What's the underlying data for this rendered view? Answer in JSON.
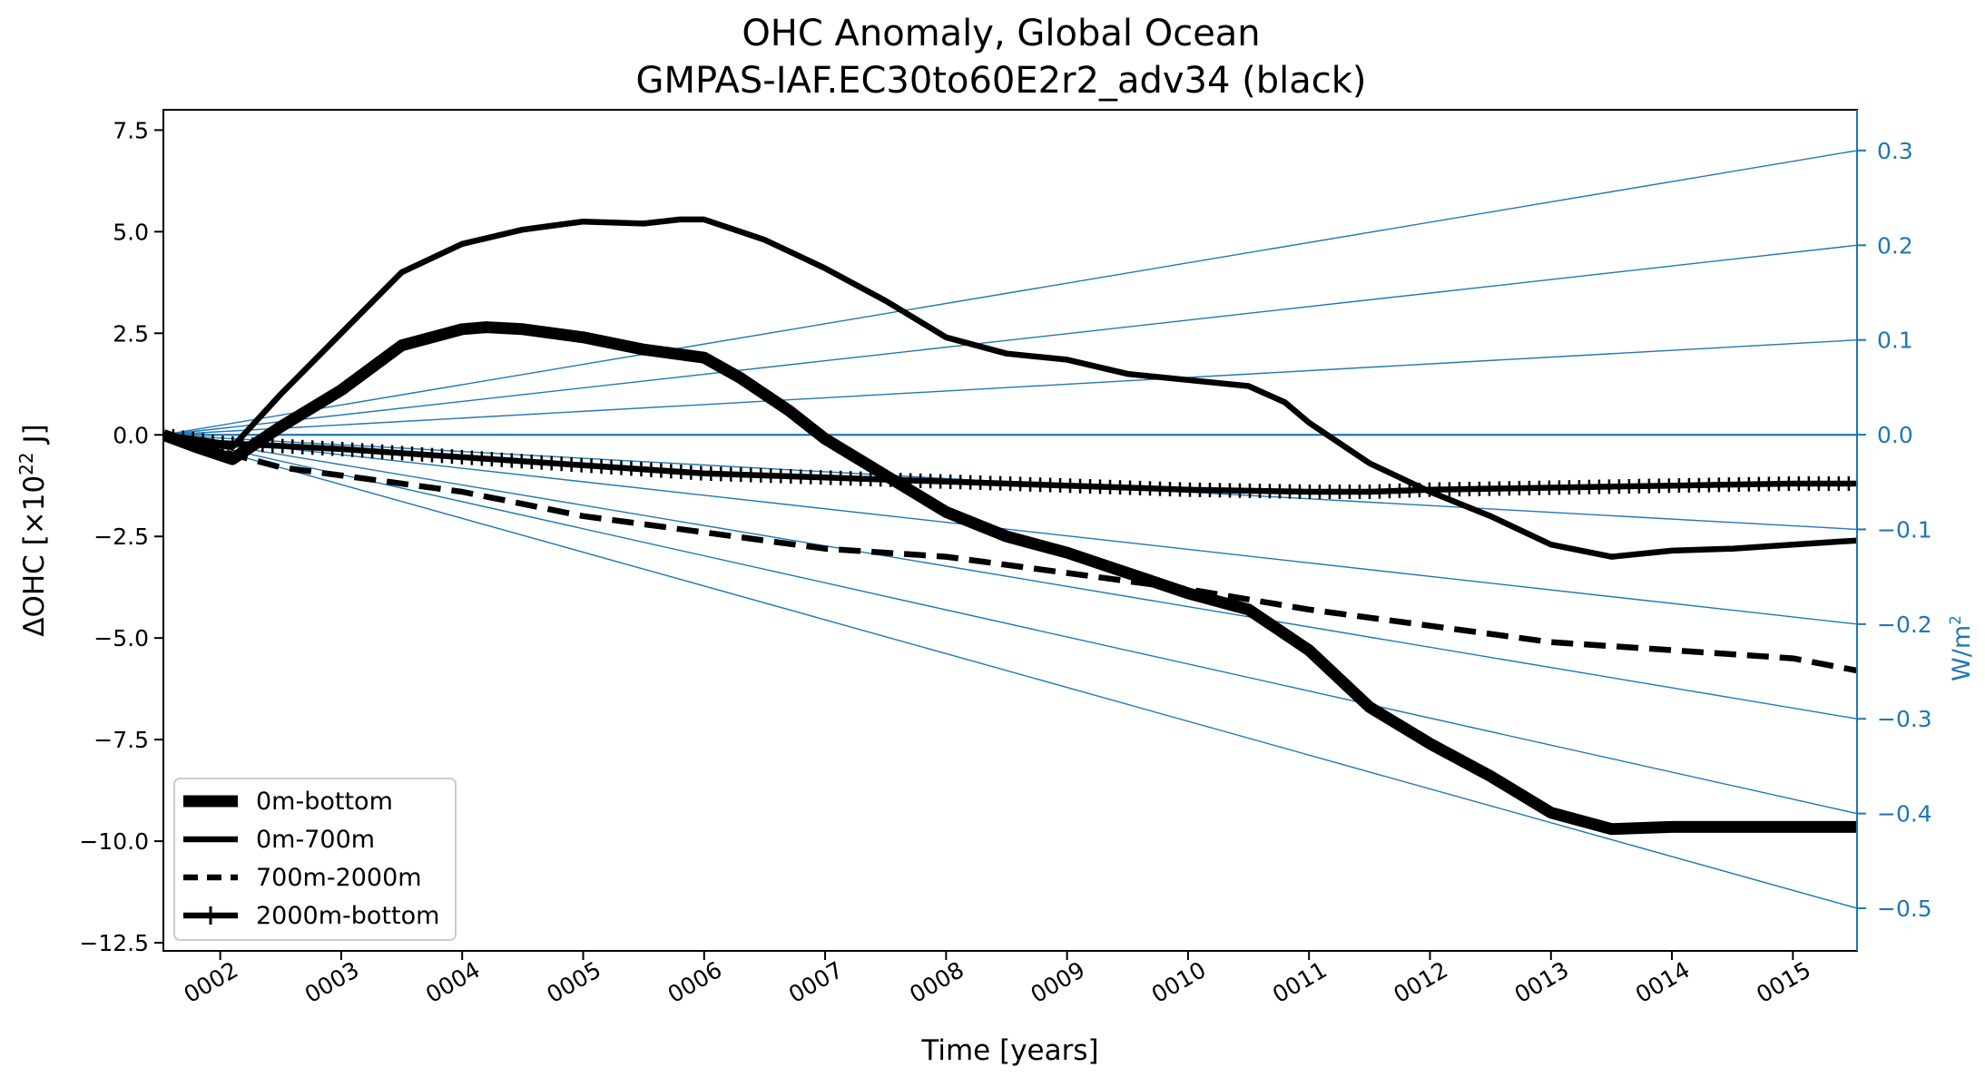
{
  "chart_data": {
    "type": "line",
    "title": "OHC Anomaly, Global Ocean",
    "subtitle": "GMPAS-IAF.EC30to60E2r2_adv34 (black)",
    "xlabel": "Time [years]",
    "ylabel_main": "ΔOHC [×10",
    "ylabel_sup": "22",
    "ylabel_tail": " J]",
    "ylabel_right_main": "W/m",
    "ylabel_right_sup": "2",
    "xlim": [
      1.53,
      15.53
    ],
    "ylim": [
      -12.7,
      8.0
    ],
    "ylim_right": [
      -0.545,
      0.343
    ],
    "x_ticks": [
      2,
      3,
      4,
      5,
      6,
      7,
      8,
      9,
      10,
      11,
      12,
      13,
      14,
      15
    ],
    "x_tick_labels": [
      "0002",
      "0003",
      "0004",
      "0005",
      "0006",
      "0007",
      "0008",
      "0009",
      "0010",
      "0011",
      "0012",
      "0013",
      "0014",
      "0015"
    ],
    "y_ticks": [
      7.5,
      5.0,
      2.5,
      0.0,
      -2.5,
      -5.0,
      -7.5,
      -10.0,
      -12.5
    ],
    "y_tick_labels": [
      "7.5",
      "5.0",
      "2.5",
      "0.0",
      "−2.5",
      "−5.0",
      "−7.5",
      "−10.0",
      "−12.5"
    ],
    "y2_ticks": [
      0.3,
      0.2,
      0.1,
      0.0,
      -0.1,
      -0.2,
      -0.3,
      -0.4,
      -0.5
    ],
    "y2_tick_labels": [
      "0.3",
      "0.2",
      "0.1",
      "0.0",
      "−0.1",
      "−0.2",
      "−0.3",
      "−0.4",
      "−0.5"
    ],
    "reference_color": "#1f77b4",
    "reference_lines_wm2": [
      0.3,
      0.2,
      0.1,
      0.0,
      -0.1,
      -0.2,
      -0.3,
      -0.4,
      -0.5
    ],
    "legend_position": "lower left",
    "series": [
      {
        "name": "0m-bottom",
        "style": "solid-thick",
        "color": "#000000",
        "points": [
          [
            1.53,
            0.0
          ],
          [
            1.8,
            -0.3
          ],
          [
            2.1,
            -0.6
          ],
          [
            2.5,
            0.2
          ],
          [
            3.0,
            1.1
          ],
          [
            3.5,
            2.2
          ],
          [
            4.0,
            2.6
          ],
          [
            4.2,
            2.65
          ],
          [
            4.5,
            2.6
          ],
          [
            5.0,
            2.4
          ],
          [
            5.5,
            2.1
          ],
          [
            6.0,
            1.9
          ],
          [
            6.3,
            1.4
          ],
          [
            6.7,
            0.6
          ],
          [
            7.0,
            -0.1
          ],
          [
            7.5,
            -1.0
          ],
          [
            8.0,
            -1.9
          ],
          [
            8.5,
            -2.5
          ],
          [
            9.0,
            -2.9
          ],
          [
            9.5,
            -3.4
          ],
          [
            10.0,
            -3.9
          ],
          [
            10.5,
            -4.3
          ],
          [
            11.0,
            -5.3
          ],
          [
            11.5,
            -6.7
          ],
          [
            12.0,
            -7.6
          ],
          [
            12.5,
            -8.4
          ],
          [
            13.0,
            -9.3
          ],
          [
            13.5,
            -9.7
          ],
          [
            14.0,
            -9.65
          ],
          [
            14.5,
            -9.65
          ],
          [
            15.0,
            -9.65
          ],
          [
            15.53,
            -9.65
          ]
        ]
      },
      {
        "name": "0m-700m",
        "style": "solid",
        "color": "#000000",
        "points": [
          [
            1.53,
            0.0
          ],
          [
            1.8,
            -0.2
          ],
          [
            2.1,
            -0.3
          ],
          [
            2.5,
            1.0
          ],
          [
            3.0,
            2.5
          ],
          [
            3.5,
            4.0
          ],
          [
            4.0,
            4.7
          ],
          [
            4.5,
            5.05
          ],
          [
            5.0,
            5.25
          ],
          [
            5.5,
            5.2
          ],
          [
            5.8,
            5.3
          ],
          [
            6.0,
            5.3
          ],
          [
            6.5,
            4.8
          ],
          [
            7.0,
            4.1
          ],
          [
            7.5,
            3.3
          ],
          [
            8.0,
            2.4
          ],
          [
            8.5,
            2.0
          ],
          [
            9.0,
            1.85
          ],
          [
            9.5,
            1.5
          ],
          [
            10.0,
            1.35
          ],
          [
            10.5,
            1.2
          ],
          [
            10.8,
            0.8
          ],
          [
            11.0,
            0.3
          ],
          [
            11.5,
            -0.7
          ],
          [
            12.0,
            -1.4
          ],
          [
            12.5,
            -2.0
          ],
          [
            13.0,
            -2.7
          ],
          [
            13.5,
            -3.0
          ],
          [
            14.0,
            -2.85
          ],
          [
            14.5,
            -2.8
          ],
          [
            15.0,
            -2.7
          ],
          [
            15.53,
            -2.6
          ]
        ]
      },
      {
        "name": "700m-2000m",
        "style": "dashed",
        "color": "#000000",
        "points": [
          [
            1.53,
            0.0
          ],
          [
            2.0,
            -0.4
          ],
          [
            2.5,
            -0.8
          ],
          [
            3.0,
            -1.0
          ],
          [
            4.0,
            -1.4
          ],
          [
            5.0,
            -2.0
          ],
          [
            6.0,
            -2.4
          ],
          [
            7.0,
            -2.8
          ],
          [
            8.0,
            -3.0
          ],
          [
            9.0,
            -3.4
          ],
          [
            10.0,
            -3.8
          ],
          [
            11.0,
            -4.3
          ],
          [
            12.0,
            -4.7
          ],
          [
            13.0,
            -5.1
          ],
          [
            14.0,
            -5.3
          ],
          [
            15.0,
            -5.5
          ],
          [
            15.53,
            -5.8
          ]
        ]
      },
      {
        "name": "2000m-bottom",
        "style": "solid-plus",
        "color": "#000000",
        "points": [
          [
            1.53,
            0.0
          ],
          [
            2.0,
            -0.2
          ],
          [
            3.0,
            -0.35
          ],
          [
            4.0,
            -0.55
          ],
          [
            5.0,
            -0.75
          ],
          [
            6.0,
            -0.95
          ],
          [
            7.0,
            -1.05
          ],
          [
            8.0,
            -1.15
          ],
          [
            9.0,
            -1.25
          ],
          [
            10.0,
            -1.35
          ],
          [
            11.0,
            -1.4
          ],
          [
            11.5,
            -1.4
          ],
          [
            12.0,
            -1.35
          ],
          [
            13.0,
            -1.3
          ],
          [
            14.0,
            -1.25
          ],
          [
            15.0,
            -1.2
          ],
          [
            15.53,
            -1.2
          ]
        ]
      }
    ]
  }
}
